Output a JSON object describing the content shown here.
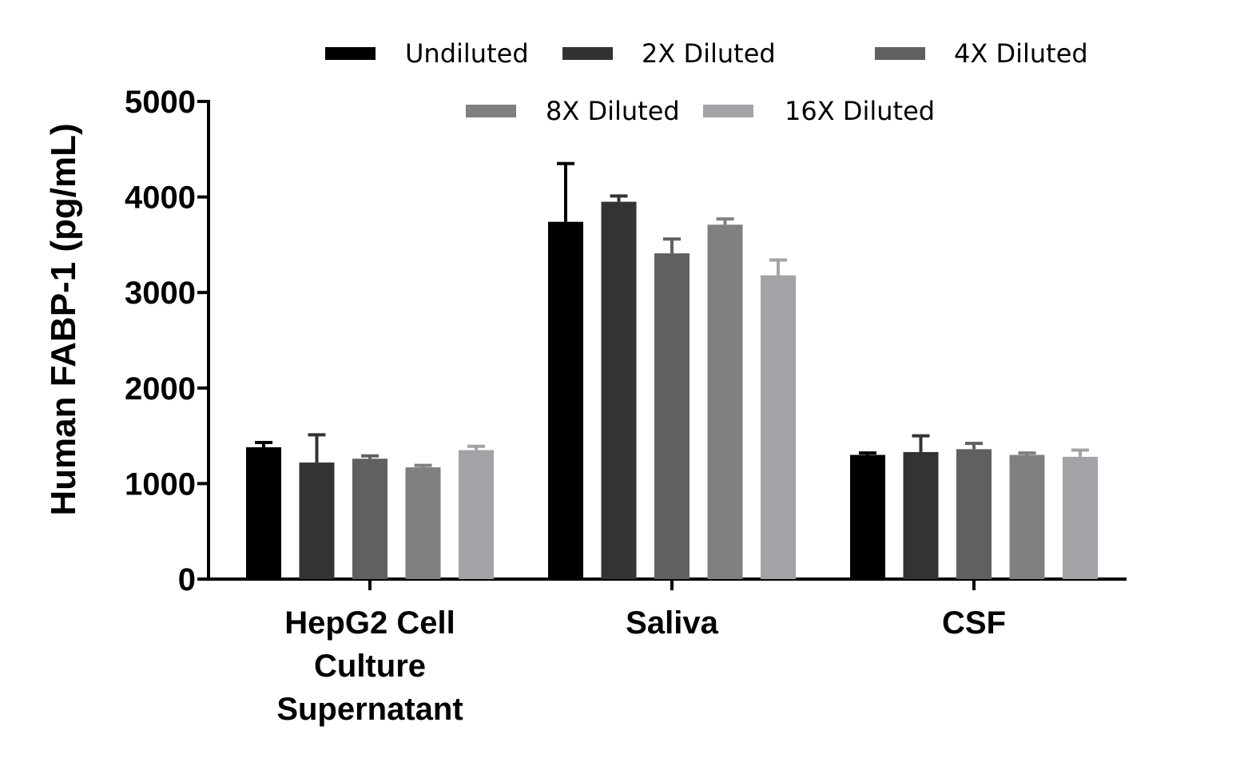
{
  "chart_data": {
    "type": "bar",
    "ylabel": "Human FABP-1 (pg/mL)",
    "xlabel": "",
    "ylim": [
      0,
      5000
    ],
    "yticks": [
      0,
      1000,
      2000,
      3000,
      4000,
      5000
    ],
    "grid": false,
    "legend_position": "top",
    "categories": [
      [
        "HepG2 Cell",
        "Culture",
        "Supernatant"
      ],
      [
        "Saliva"
      ],
      [
        "CSF"
      ]
    ],
    "series": [
      {
        "name": "Undiluted",
        "color": "#000000",
        "values": [
          1380,
          3740,
          1300
        ],
        "errors": [
          50,
          610,
          20
        ]
      },
      {
        "name": "2X Diluted",
        "color": "#333333",
        "values": [
          1220,
          3950,
          1330
        ],
        "errors": [
          290,
          60,
          170
        ]
      },
      {
        "name": "4X Diluted",
        "color": "#606060",
        "values": [
          1260,
          3410,
          1360
        ],
        "errors": [
          30,
          150,
          60
        ]
      },
      {
        "name": "8X Diluted",
        "color": "#808080",
        "values": [
          1170,
          3710,
          1300
        ],
        "errors": [
          20,
          60,
          20
        ]
      },
      {
        "name": "16X Diluted",
        "color": "#a3a3a7",
        "values": [
          1350,
          3180,
          1280
        ],
        "errors": [
          40,
          160,
          70
        ]
      }
    ]
  }
}
